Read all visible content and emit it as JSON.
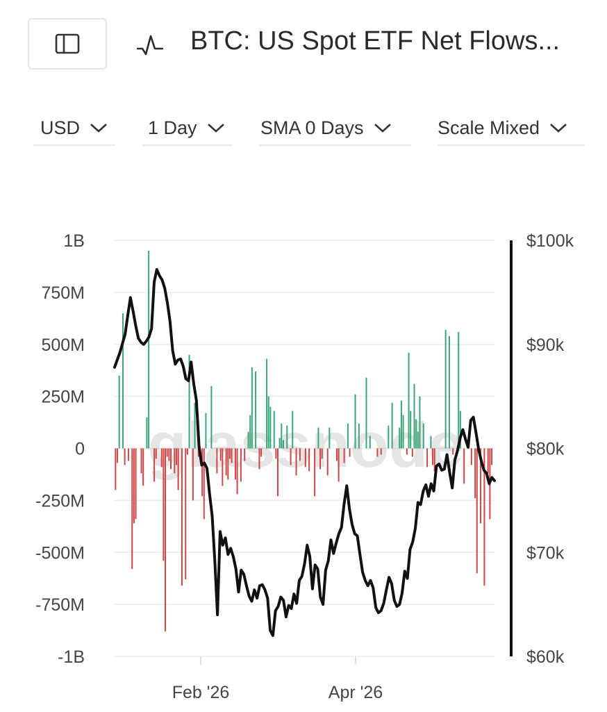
{
  "header": {
    "title": "BTC: US Spot ETF Net Flows...",
    "sidebar_icon": "sidebar-panel-icon",
    "metric_icon": "pulse-icon"
  },
  "controls": [
    {
      "label": "USD",
      "icon": "chevron-down-icon"
    },
    {
      "label": "1 Day",
      "icon": "chevron-down-icon"
    },
    {
      "label": "SMA 0 Days",
      "icon": "chevron-down-icon"
    },
    {
      "label": "Scale Mixed",
      "icon": "chevron-down-icon"
    }
  ],
  "watermark": "glassnode",
  "colors": {
    "inflow": "#3aa57a",
    "outflow": "#cf4545",
    "price": "#111111",
    "grid": "#ececec",
    "axis_text": "#444444"
  },
  "chart_data": {
    "type": "bar",
    "title": "BTC: US Spot ETF Net Flows...",
    "left_axis": {
      "ticks": [
        "1B",
        "750M",
        "500M",
        "250M",
        "0",
        "-250M",
        "-500M",
        "-750M",
        "-1B"
      ],
      "range": [
        -1000,
        1000
      ],
      "unit": "M USD"
    },
    "right_axis": {
      "ticks": [
        "$100k",
        "$90k",
        "$80k",
        "$70k",
        "$60k"
      ],
      "range": [
        60000,
        100000
      ]
    },
    "x_axis": {
      "ticks": [
        "Feb '26",
        "Apr '26"
      ]
    },
    "grid": true,
    "series": [
      {
        "type": "bar",
        "note": "daily net flows in M USD, ordered by date",
        "values": [
          -200,
          -70,
          350,
          0,
          650,
          -80,
          0,
          -60,
          0,
          -580,
          -360,
          -340,
          0,
          0,
          -120,
          -180,
          0,
          150,
          950,
          0,
          0,
          -160,
          -50,
          0,
          0,
          -90,
          -540,
          -880,
          -40,
          -60,
          -100,
          0,
          -120,
          -80,
          -200,
          0,
          -660,
          0,
          -630,
          -30,
          450,
          0,
          -250,
          220,
          0,
          -40,
          0,
          -230,
          -340,
          170,
          0,
          0,
          300,
          0,
          0,
          -120,
          0,
          -60,
          -180,
          0,
          -130,
          -150,
          -50,
          -70,
          0,
          -150,
          -220,
          0,
          -160,
          0,
          -60,
          0,
          80,
          160,
          390,
          0,
          370,
          0,
          -100,
          -40,
          0,
          0,
          430,
          250,
          200,
          0,
          180,
          -50,
          -230,
          50,
          120,
          40,
          0,
          110,
          0,
          -80,
          180,
          0,
          -130,
          0,
          -60,
          0,
          0,
          -90,
          0,
          -110,
          0,
          0,
          -230,
          0,
          100,
          -100,
          -50,
          0,
          0,
          -130,
          100,
          0,
          0,
          0,
          -60,
          -160,
          0,
          0,
          -70,
          0,
          120,
          -40,
          0,
          0,
          260,
          0,
          120,
          0,
          0,
          0,
          340,
          0,
          60,
          0,
          0,
          0,
          -40,
          0,
          -30,
          0,
          0,
          0,
          110,
          0,
          220,
          0,
          0,
          0,
          100,
          230,
          160,
          0,
          -30,
          460,
          180,
          -40,
          310,
          140,
          80,
          250,
          0,
          120,
          0,
          -90,
          0,
          60,
          -80,
          -110,
          0,
          0,
          0,
          0,
          0,
          570,
          0,
          540,
          0,
          -30,
          0,
          0,
          560,
          180,
          0,
          -170,
          0,
          0,
          0,
          -80,
          0,
          -240,
          -600,
          0,
          -360,
          0,
          -660,
          0,
          -120,
          -340,
          -80,
          0
        ]
      },
      {
        "type": "line",
        "note": "BTC price in USD, ordered by date",
        "values": [
          87800,
          88500,
          89200,
          90100,
          91000,
          92800,
          94500,
          93200,
          91800,
          90600,
          90200,
          90000,
          90300,
          90700,
          91500,
          96000,
          97200,
          96600,
          96200,
          95400,
          94000,
          92200,
          89400,
          88100,
          88500,
          88600,
          87900,
          86700,
          86500,
          88300,
          86200,
          84600,
          80200,
          78400,
          78600,
          78100,
          75600,
          73500,
          69200,
          64000,
          72000,
          70700,
          71400,
          69800,
          70400,
          69600,
          68400,
          66200,
          68300,
          67900,
          66800,
          65800,
          65300,
          66400,
          65600,
          66800,
          66900,
          66400,
          65600,
          62500,
          62000,
          64400,
          64800,
          65700,
          65400,
          63800,
          64900,
          64600,
          66000,
          65100,
          67300,
          67700,
          68900,
          70700,
          69600,
          66500,
          68800,
          68400,
          65700,
          65000,
          68300,
          69200,
          71200,
          69900,
          70900,
          71800,
          72400,
          74700,
          76400,
          74200,
          72700,
          71800,
          71600,
          69800,
          68100,
          67300,
          66800,
          67300,
          66600,
          64700,
          64200,
          64400,
          65100,
          66400,
          67600,
          67000,
          65400,
          64800,
          65000,
          66100,
          68200,
          67500,
          70300,
          71000,
          72300,
          74800,
          74600,
          75900,
          76500,
          75400,
          76600,
          75900,
          78300,
          78500,
          77900,
          78000,
          79400,
          77700,
          76200,
          78900,
          79800,
          81000,
          81800,
          80900,
          80100,
          82700,
          83000,
          81500,
          79900,
          78800,
          77900,
          77600,
          76600,
          77200,
          76900
        ]
      }
    ]
  }
}
